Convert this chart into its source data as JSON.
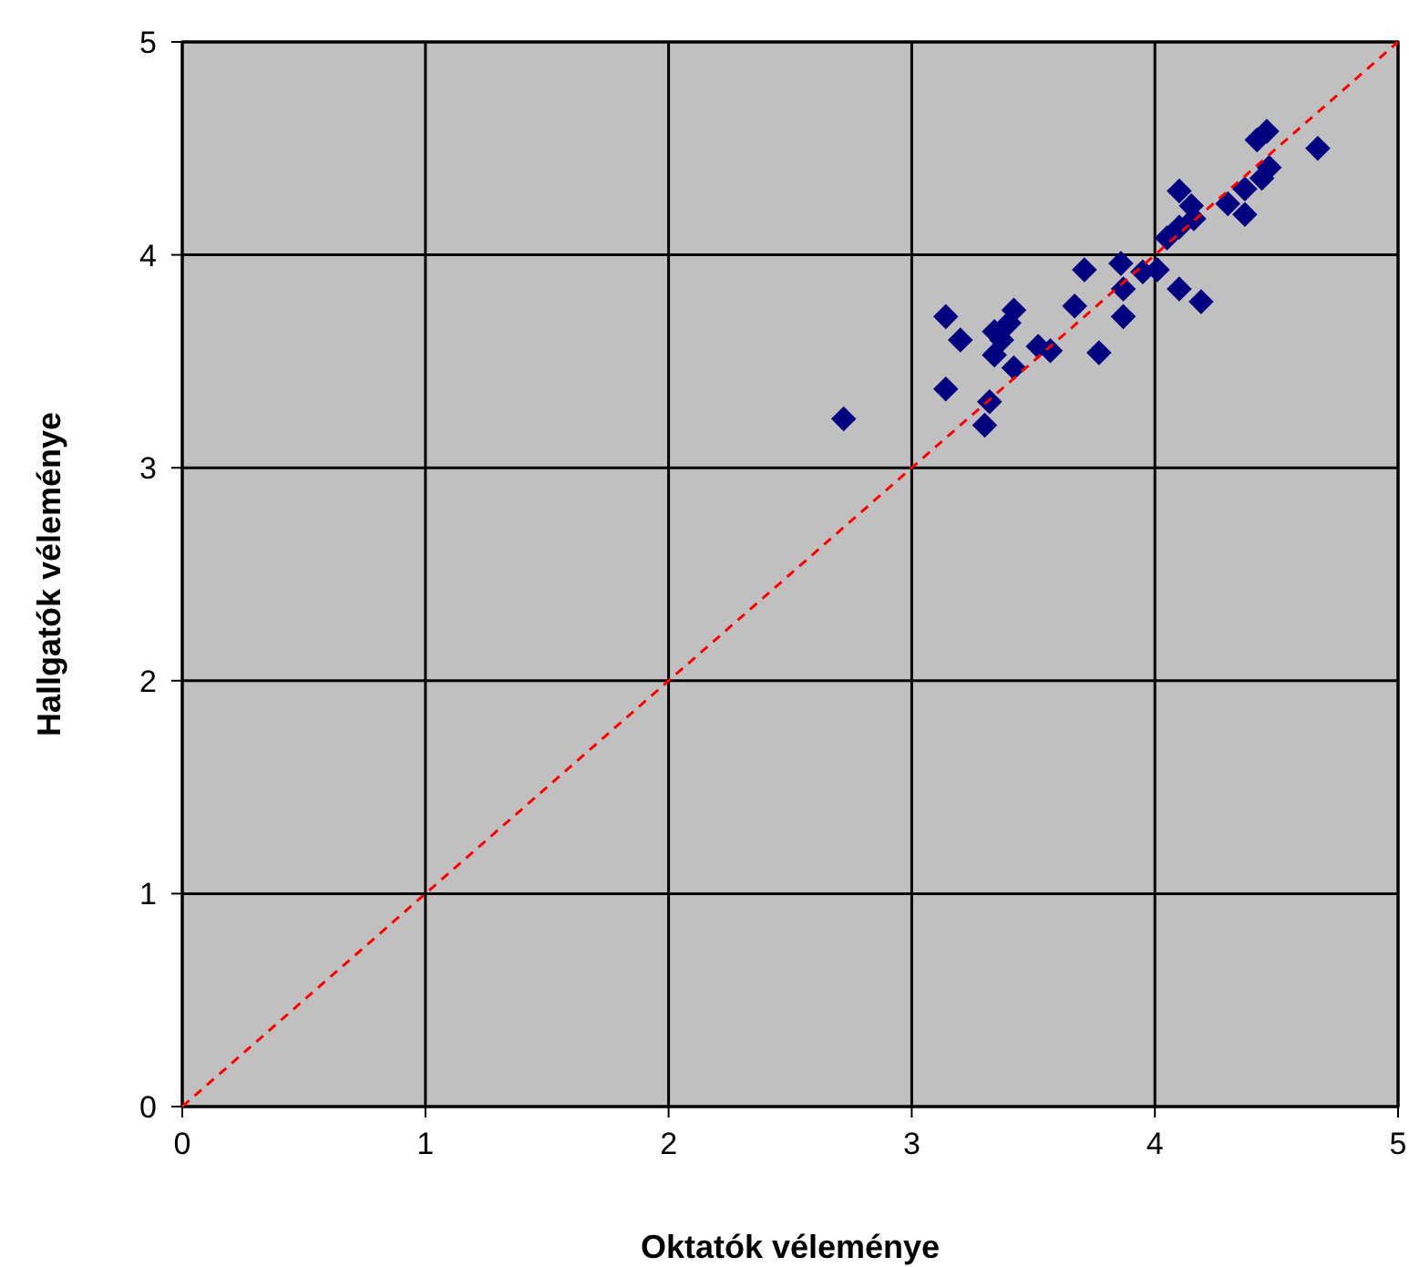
{
  "chart_data": {
    "type": "scatter",
    "xlabel": "Oktatók véleménye",
    "ylabel": "Hallgatók véleménye",
    "xlim": [
      0,
      5
    ],
    "ylim": [
      0,
      5
    ],
    "xticks": [
      0,
      1,
      2,
      3,
      4,
      5
    ],
    "yticks": [
      0,
      1,
      2,
      3,
      4,
      5
    ],
    "grid": true,
    "marker": "diamond",
    "series": [
      {
        "color": "#000080",
        "x": [
          2.72,
          3.14,
          3.2,
          3.14,
          3.32,
          3.3,
          3.42,
          3.34,
          3.37,
          3.34,
          3.42,
          3.4,
          3.52,
          3.57,
          3.67,
          3.71,
          3.77,
          3.87,
          3.87,
          3.86,
          3.95,
          4.01,
          4.1,
          4.19,
          4.05,
          4.1,
          4.1,
          4.15,
          4.16,
          4.3,
          4.37,
          4.37,
          4.44,
          4.47,
          4.46,
          4.42,
          4.67
        ],
        "values": [
          3.23,
          3.71,
          3.6,
          3.37,
          3.31,
          3.2,
          3.74,
          3.64,
          3.6,
          3.53,
          3.47,
          3.68,
          3.57,
          3.55,
          3.76,
          3.93,
          3.54,
          3.71,
          3.84,
          3.96,
          3.92,
          3.93,
          3.84,
          3.78,
          4.08,
          4.13,
          4.3,
          4.23,
          4.17,
          4.24,
          4.19,
          4.31,
          4.36,
          4.41,
          4.58,
          4.54,
          4.5
        ]
      },
      {
        "type": "line",
        "color": "#ff0000",
        "x": [
          0,
          5
        ],
        "values": [
          0,
          5
        ],
        "line_style": "dashed",
        "marker": "none"
      }
    ]
  }
}
